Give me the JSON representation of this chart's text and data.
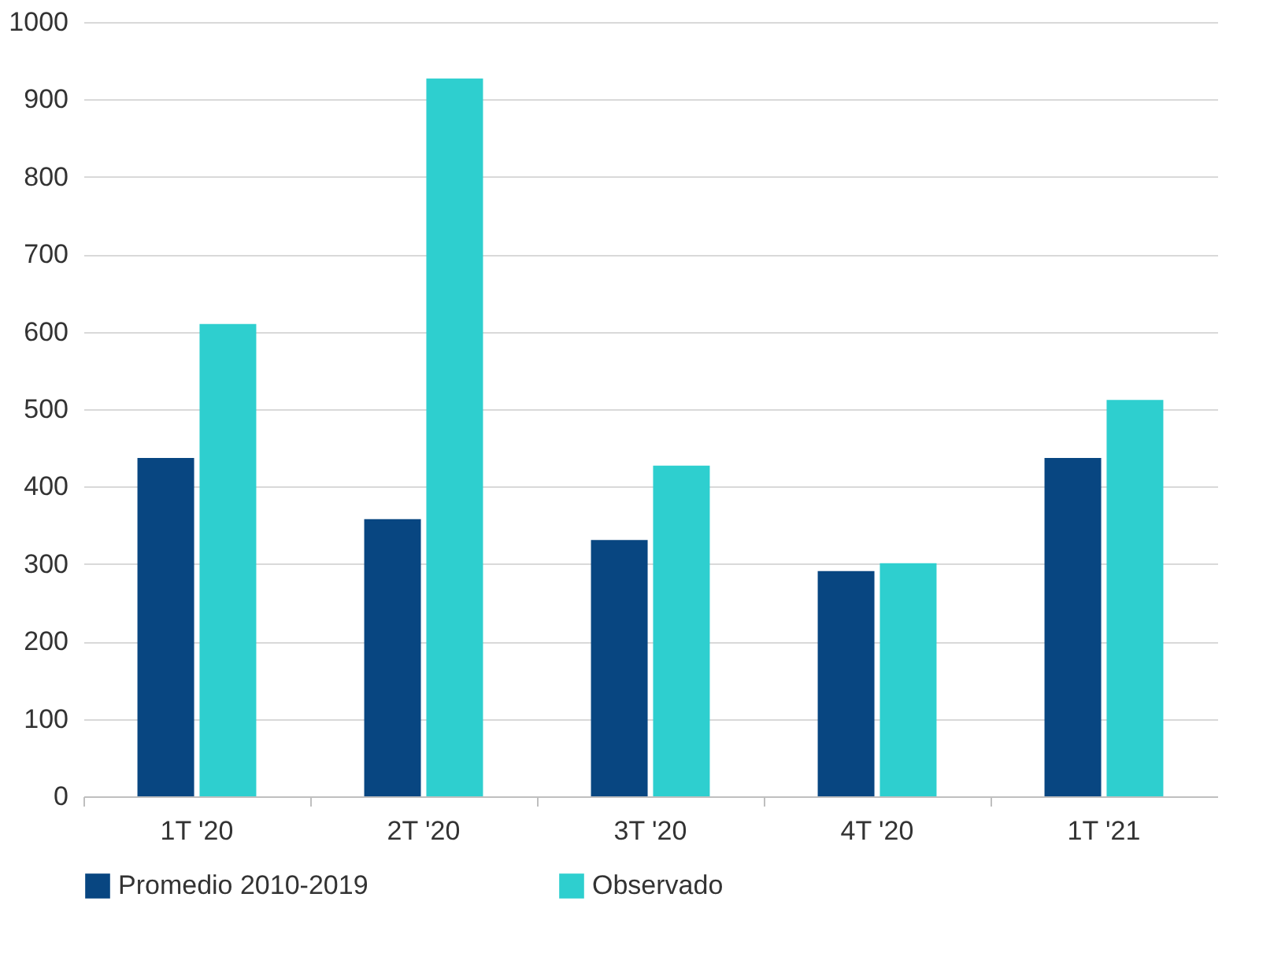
{
  "chart_data": {
    "type": "bar",
    "categories": [
      "1T '20",
      "2T '20",
      "3T '20",
      "4T '20",
      "1T '21"
    ],
    "series": [
      {
        "name": "Promedio 2010-2019",
        "color": "#084681",
        "values": [
          437,
          358,
          331,
          291,
          437
        ]
      },
      {
        "name": "Observado",
        "color": "#2ecfcf",
        "values": [
          610,
          927,
          427,
          301,
          512
        ]
      }
    ],
    "ylim": [
      0,
      1000
    ],
    "yticks": [
      0,
      100,
      200,
      300,
      400,
      500,
      600,
      700,
      800,
      900,
      1000
    ],
    "grid": "y",
    "legend": "bottom"
  }
}
